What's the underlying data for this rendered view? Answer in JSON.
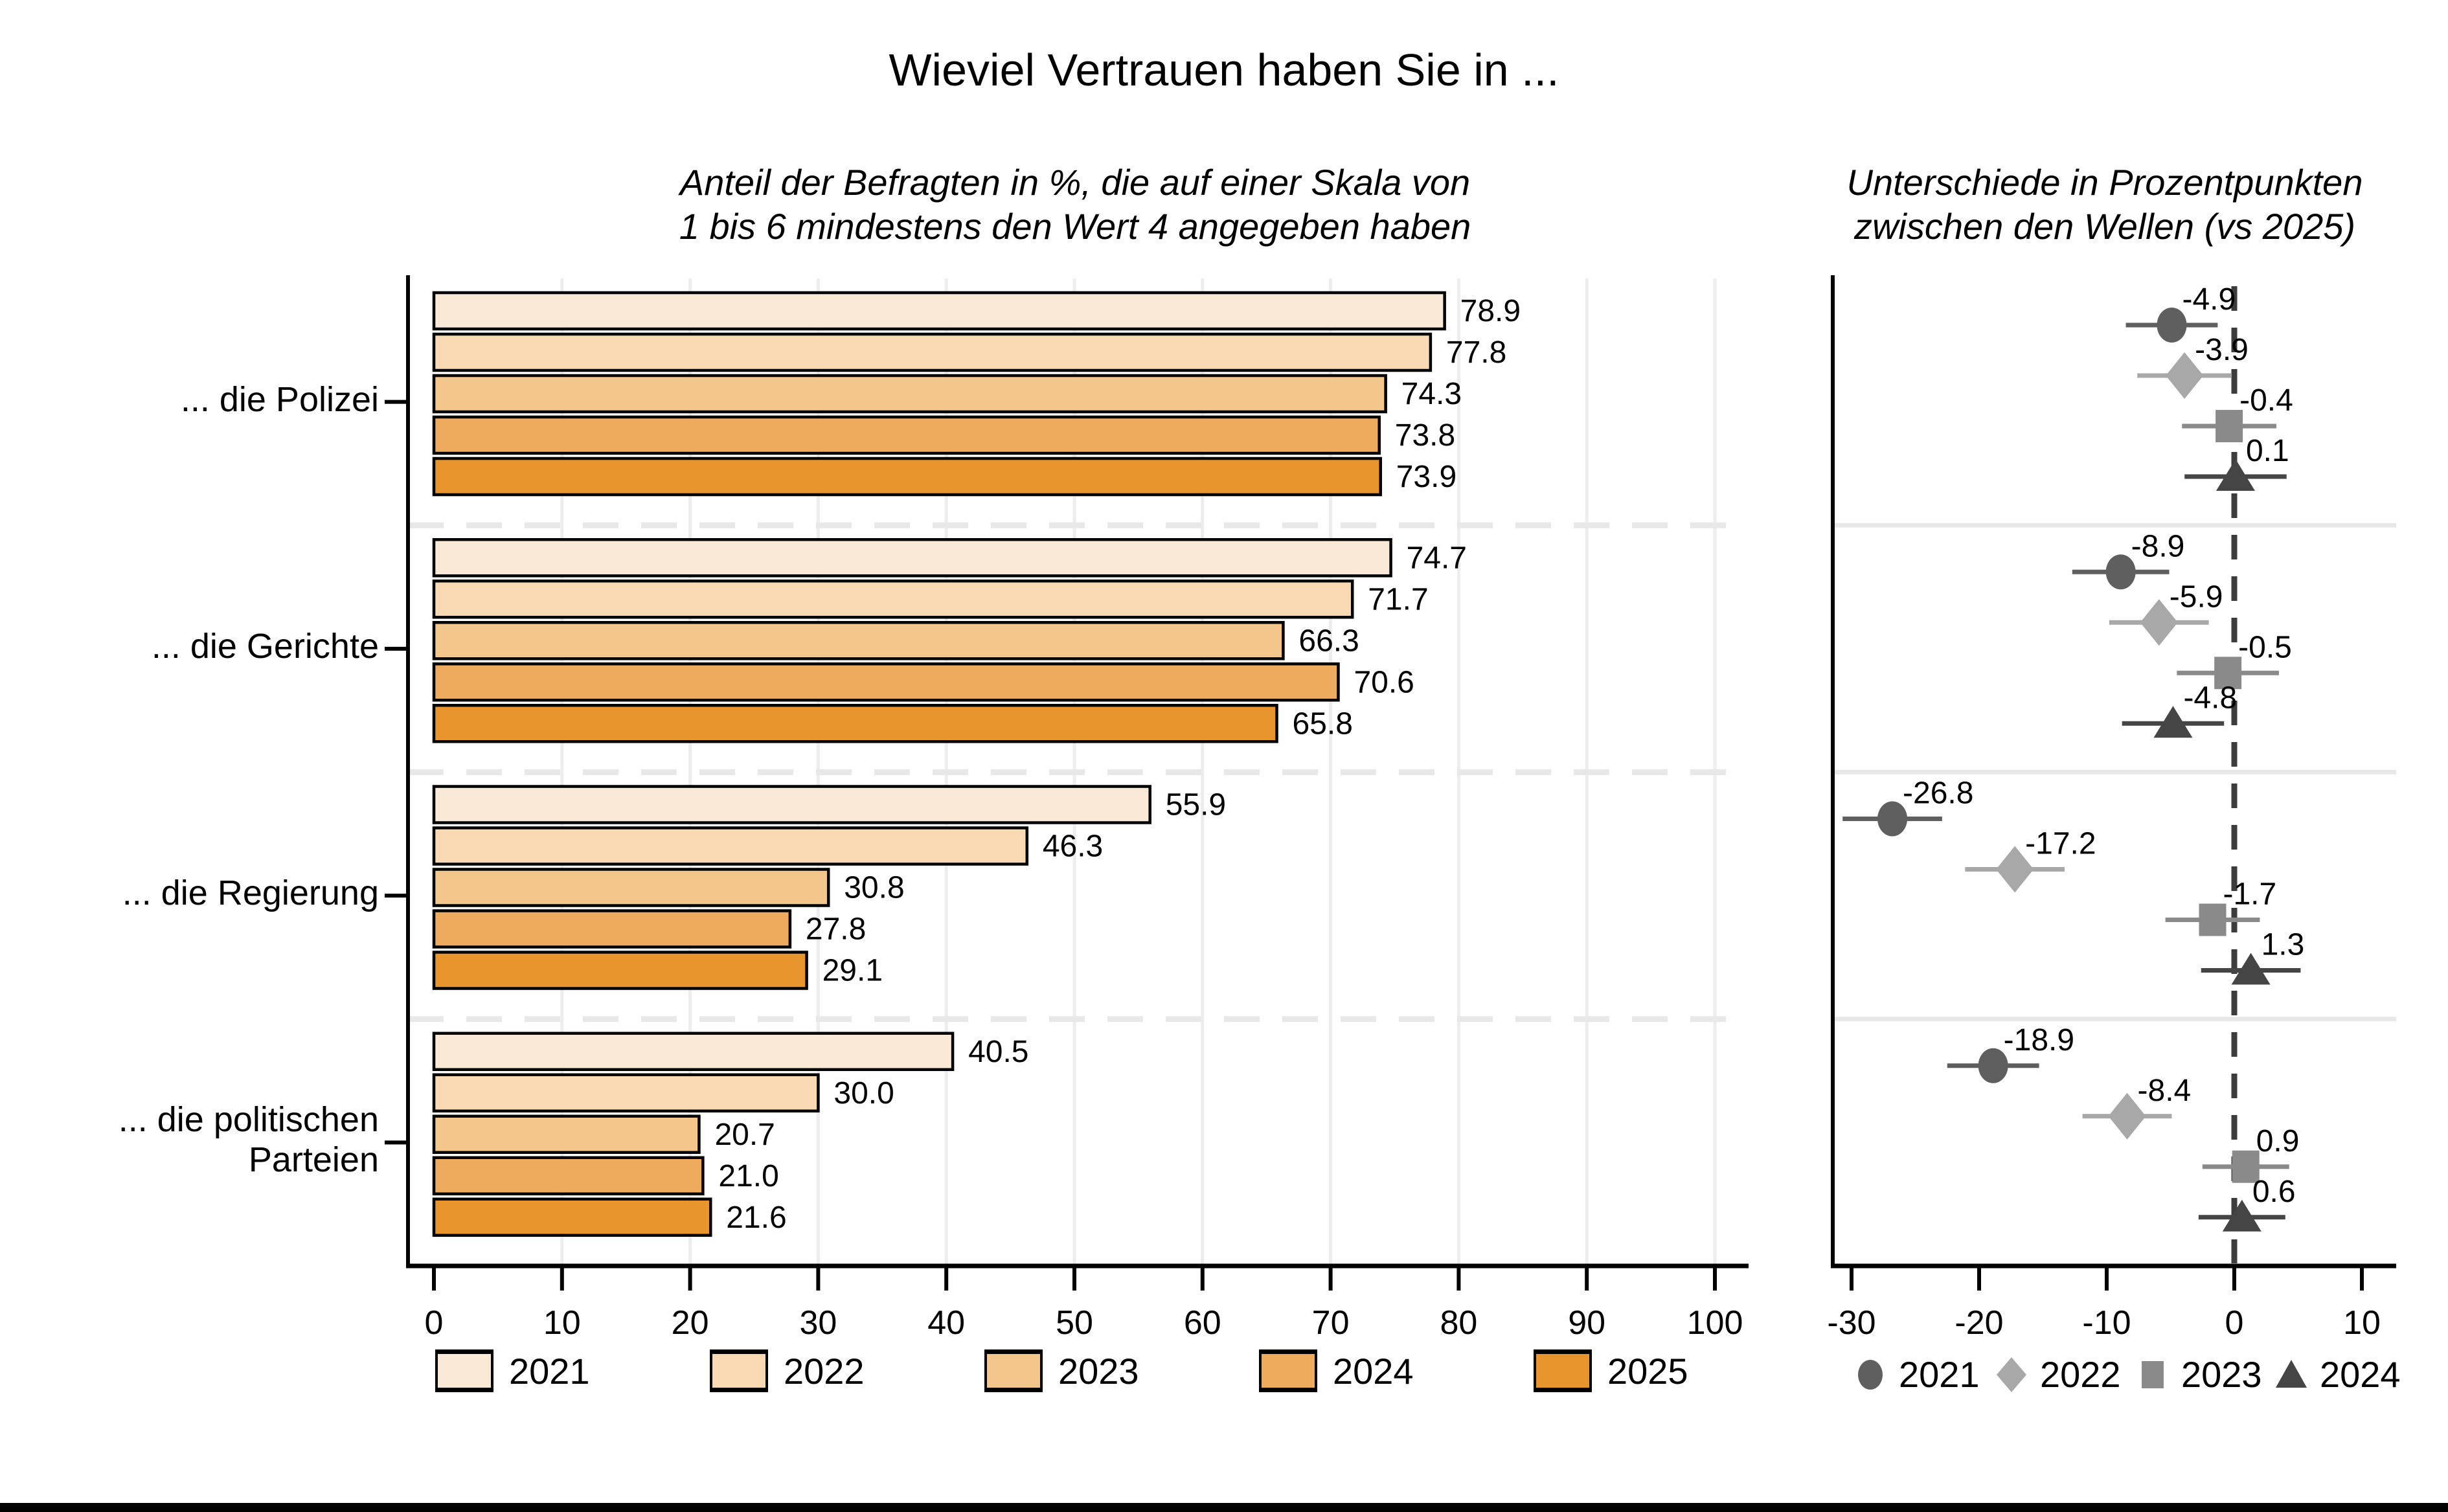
{
  "title": "Wieviel Vertrauen haben Sie in ...",
  "chart_data": [
    {
      "id": "trust-share-bars",
      "type": "bar",
      "orientation": "horizontal",
      "subtitle_lines": [
        "Anteil der Befragten in %, die auf einer Skala von",
        "1 bis 6 mindestens den Wert 4 angegeben haben"
      ],
      "categories": [
        {
          "lines": [
            "... die Polizei"
          ]
        },
        {
          "lines": [
            "... die Gerichte"
          ]
        },
        {
          "lines": [
            "... die Regierung"
          ]
        },
        {
          "lines": [
            "... die politischen",
            "Parteien"
          ]
        }
      ],
      "series": [
        {
          "name": "2021",
          "color": "#fbe9d7",
          "values": [
            78.9,
            74.7,
            55.9,
            40.5
          ],
          "labels": [
            "78.9",
            "74.7",
            "55.9",
            "40.5"
          ]
        },
        {
          "name": "2022",
          "color": "#f8d9b4",
          "values": [
            77.8,
            71.7,
            46.3,
            30.0
          ],
          "labels": [
            "77.8",
            "71.7",
            "46.3",
            "30.0"
          ]
        },
        {
          "name": "2023",
          "color": "#f3c68c",
          "values": [
            74.3,
            66.3,
            30.8,
            20.7
          ],
          "labels": [
            "74.3",
            "66.3",
            "30.8",
            "20.7"
          ]
        },
        {
          "name": "2024",
          "color": "#eeab5e",
          "values": [
            73.8,
            70.6,
            27.8,
            21.0
          ],
          "labels": [
            "73.8",
            "70.6",
            "27.8",
            "21.0"
          ]
        },
        {
          "name": "2025",
          "color": "#e8952e",
          "values": [
            73.9,
            65.8,
            29.1,
            21.6
          ],
          "labels": [
            "73.9",
            "65.8",
            "29.1",
            "21.6"
          ]
        }
      ],
      "xlim": [
        0,
        100
      ],
      "xticks": [
        "0",
        "10",
        "20",
        "30",
        "40",
        "50",
        "60",
        "70",
        "80",
        "90",
        "100"
      ],
      "bar_outline_color": "#000000",
      "gridline_color": "#ededed",
      "separator_color": "#e8e8e8",
      "grid": true,
      "legend_position": "bottom"
    },
    {
      "id": "wave-differences-dotplot",
      "type": "scatter",
      "subtitle_lines": [
        "Unterschiede in Prozentpunkten",
        "zwischen den Wellen (vs 2025)"
      ],
      "categories": [
        {
          "lines": [
            "... die Polizei"
          ]
        },
        {
          "lines": [
            "... die Gerichte"
          ]
        },
        {
          "lines": [
            "... die Regierung"
          ]
        },
        {
          "lines": [
            "... die politischen",
            "Parteien"
          ]
        }
      ],
      "series": [
        {
          "name": "2021",
          "marker": "circle",
          "color": "#5f5f5f",
          "values": [
            -4.9,
            -8.9,
            -26.8,
            -18.9
          ],
          "labels": [
            "-4.9",
            "-8.9",
            "-26.8",
            "-18.9"
          ],
          "ci_half_width": [
            3.6,
            3.8,
            3.9,
            3.6
          ]
        },
        {
          "name": "2022",
          "marker": "diamond",
          "color": "#a8a8a8",
          "values": [
            -3.9,
            -5.9,
            -17.2,
            -8.4
          ],
          "labels": [
            "-3.9",
            "-5.9",
            "-17.2",
            "-8.4"
          ],
          "ci_half_width": [
            3.7,
            3.9,
            3.9,
            3.5
          ]
        },
        {
          "name": "2023",
          "marker": "square",
          "color": "#8a8a8a",
          "values": [
            -0.4,
            -0.5,
            -1.7,
            0.9
          ],
          "labels": [
            "-0.4",
            "-0.5",
            "-1.7",
            "0.9"
          ],
          "ci_half_width": [
            3.7,
            4.0,
            3.7,
            3.4
          ]
        },
        {
          "name": "2024",
          "marker": "triangle",
          "color": "#454545",
          "values": [
            0.1,
            -4.8,
            1.3,
            0.6
          ],
          "labels": [
            "0.1",
            "-4.8",
            "1.3",
            "0.6"
          ],
          "ci_half_width": [
            4.0,
            4.0,
            3.9,
            3.4
          ]
        }
      ],
      "xlim": [
        -31,
        13
      ],
      "xticks": [
        "-30",
        "-20",
        "-10",
        "0",
        "10"
      ],
      "zero_line": 0,
      "zero_line_color": "#3d3d3d",
      "separator_color": "#e8e8e8",
      "grid": false,
      "legend_position": "bottom"
    }
  ]
}
